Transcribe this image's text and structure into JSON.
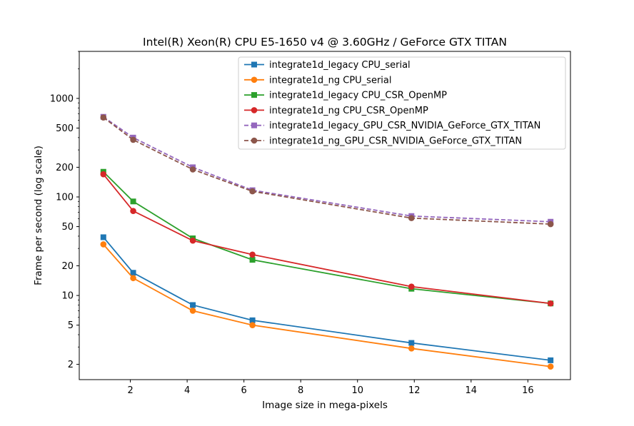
{
  "chart_data": {
    "type": "line",
    "title": "Intel(R) Xeon(R) CPU E5-1650 v4 @ 3.60GHz / GeForce GTX TITAN",
    "xlabel": "Image size in mega-pixels",
    "ylabel": "Frame per second (log scale)",
    "xlim": [
      0.2,
      17.5
    ],
    "ylim": [
      1.4,
      3000
    ],
    "yscale": "log",
    "xticks": [
      2,
      4,
      6,
      8,
      10,
      12,
      14,
      16
    ],
    "xtick_labels": [
      "2",
      "4",
      "6",
      "8",
      "10",
      "12",
      "14",
      "16"
    ],
    "yticks": [
      2,
      5,
      10,
      20,
      50,
      100,
      200,
      500,
      1000
    ],
    "ytick_labels": [
      "2",
      "5",
      "10",
      "20",
      "50",
      "100",
      "200",
      "500",
      "1000"
    ],
    "grid": false,
    "legend_position": "top-right",
    "x": [
      1.05,
      2.1,
      4.2,
      6.3,
      11.9,
      16.8
    ],
    "series": [
      {
        "name": "integrate1d_legacy CPU_serial",
        "color": "#1f77b4",
        "marker": "square",
        "dash": "solid",
        "values": [
          39,
          17,
          8,
          5.6,
          3.3,
          2.2
        ]
      },
      {
        "name": "integrate1d_ng CPU_serial",
        "color": "#ff7f0e",
        "marker": "circle",
        "dash": "solid",
        "values": [
          33,
          15,
          7,
          5,
          2.9,
          1.9
        ]
      },
      {
        "name": "integrate1d_legacy CPU_CSR_OpenMP",
        "color": "#2ca02c",
        "marker": "square",
        "dash": "solid",
        "values": [
          180,
          90,
          38,
          23,
          11.7,
          8.3
        ]
      },
      {
        "name": "integrate1d_ng CPU_CSR_OpenMP",
        "color": "#d62728",
        "marker": "circle",
        "dash": "solid",
        "values": [
          170,
          72,
          36,
          26,
          12.3,
          8.3
        ]
      },
      {
        "name": "integrate1d_legacy_GPU_CSR_NVIDIA_GeForce_GTX_TITAN",
        "color": "#9467bd",
        "marker": "square",
        "dash": "dashed",
        "values": [
          650,
          400,
          200,
          117,
          64,
          56
        ]
      },
      {
        "name": "integrate1d_ng_GPU_CSR_NVIDIA_GeForce_GTX_TITAN",
        "color": "#8c564b",
        "marker": "circle",
        "dash": "dashed",
        "values": [
          640,
          380,
          190,
          114,
          61,
          53
        ]
      }
    ]
  }
}
